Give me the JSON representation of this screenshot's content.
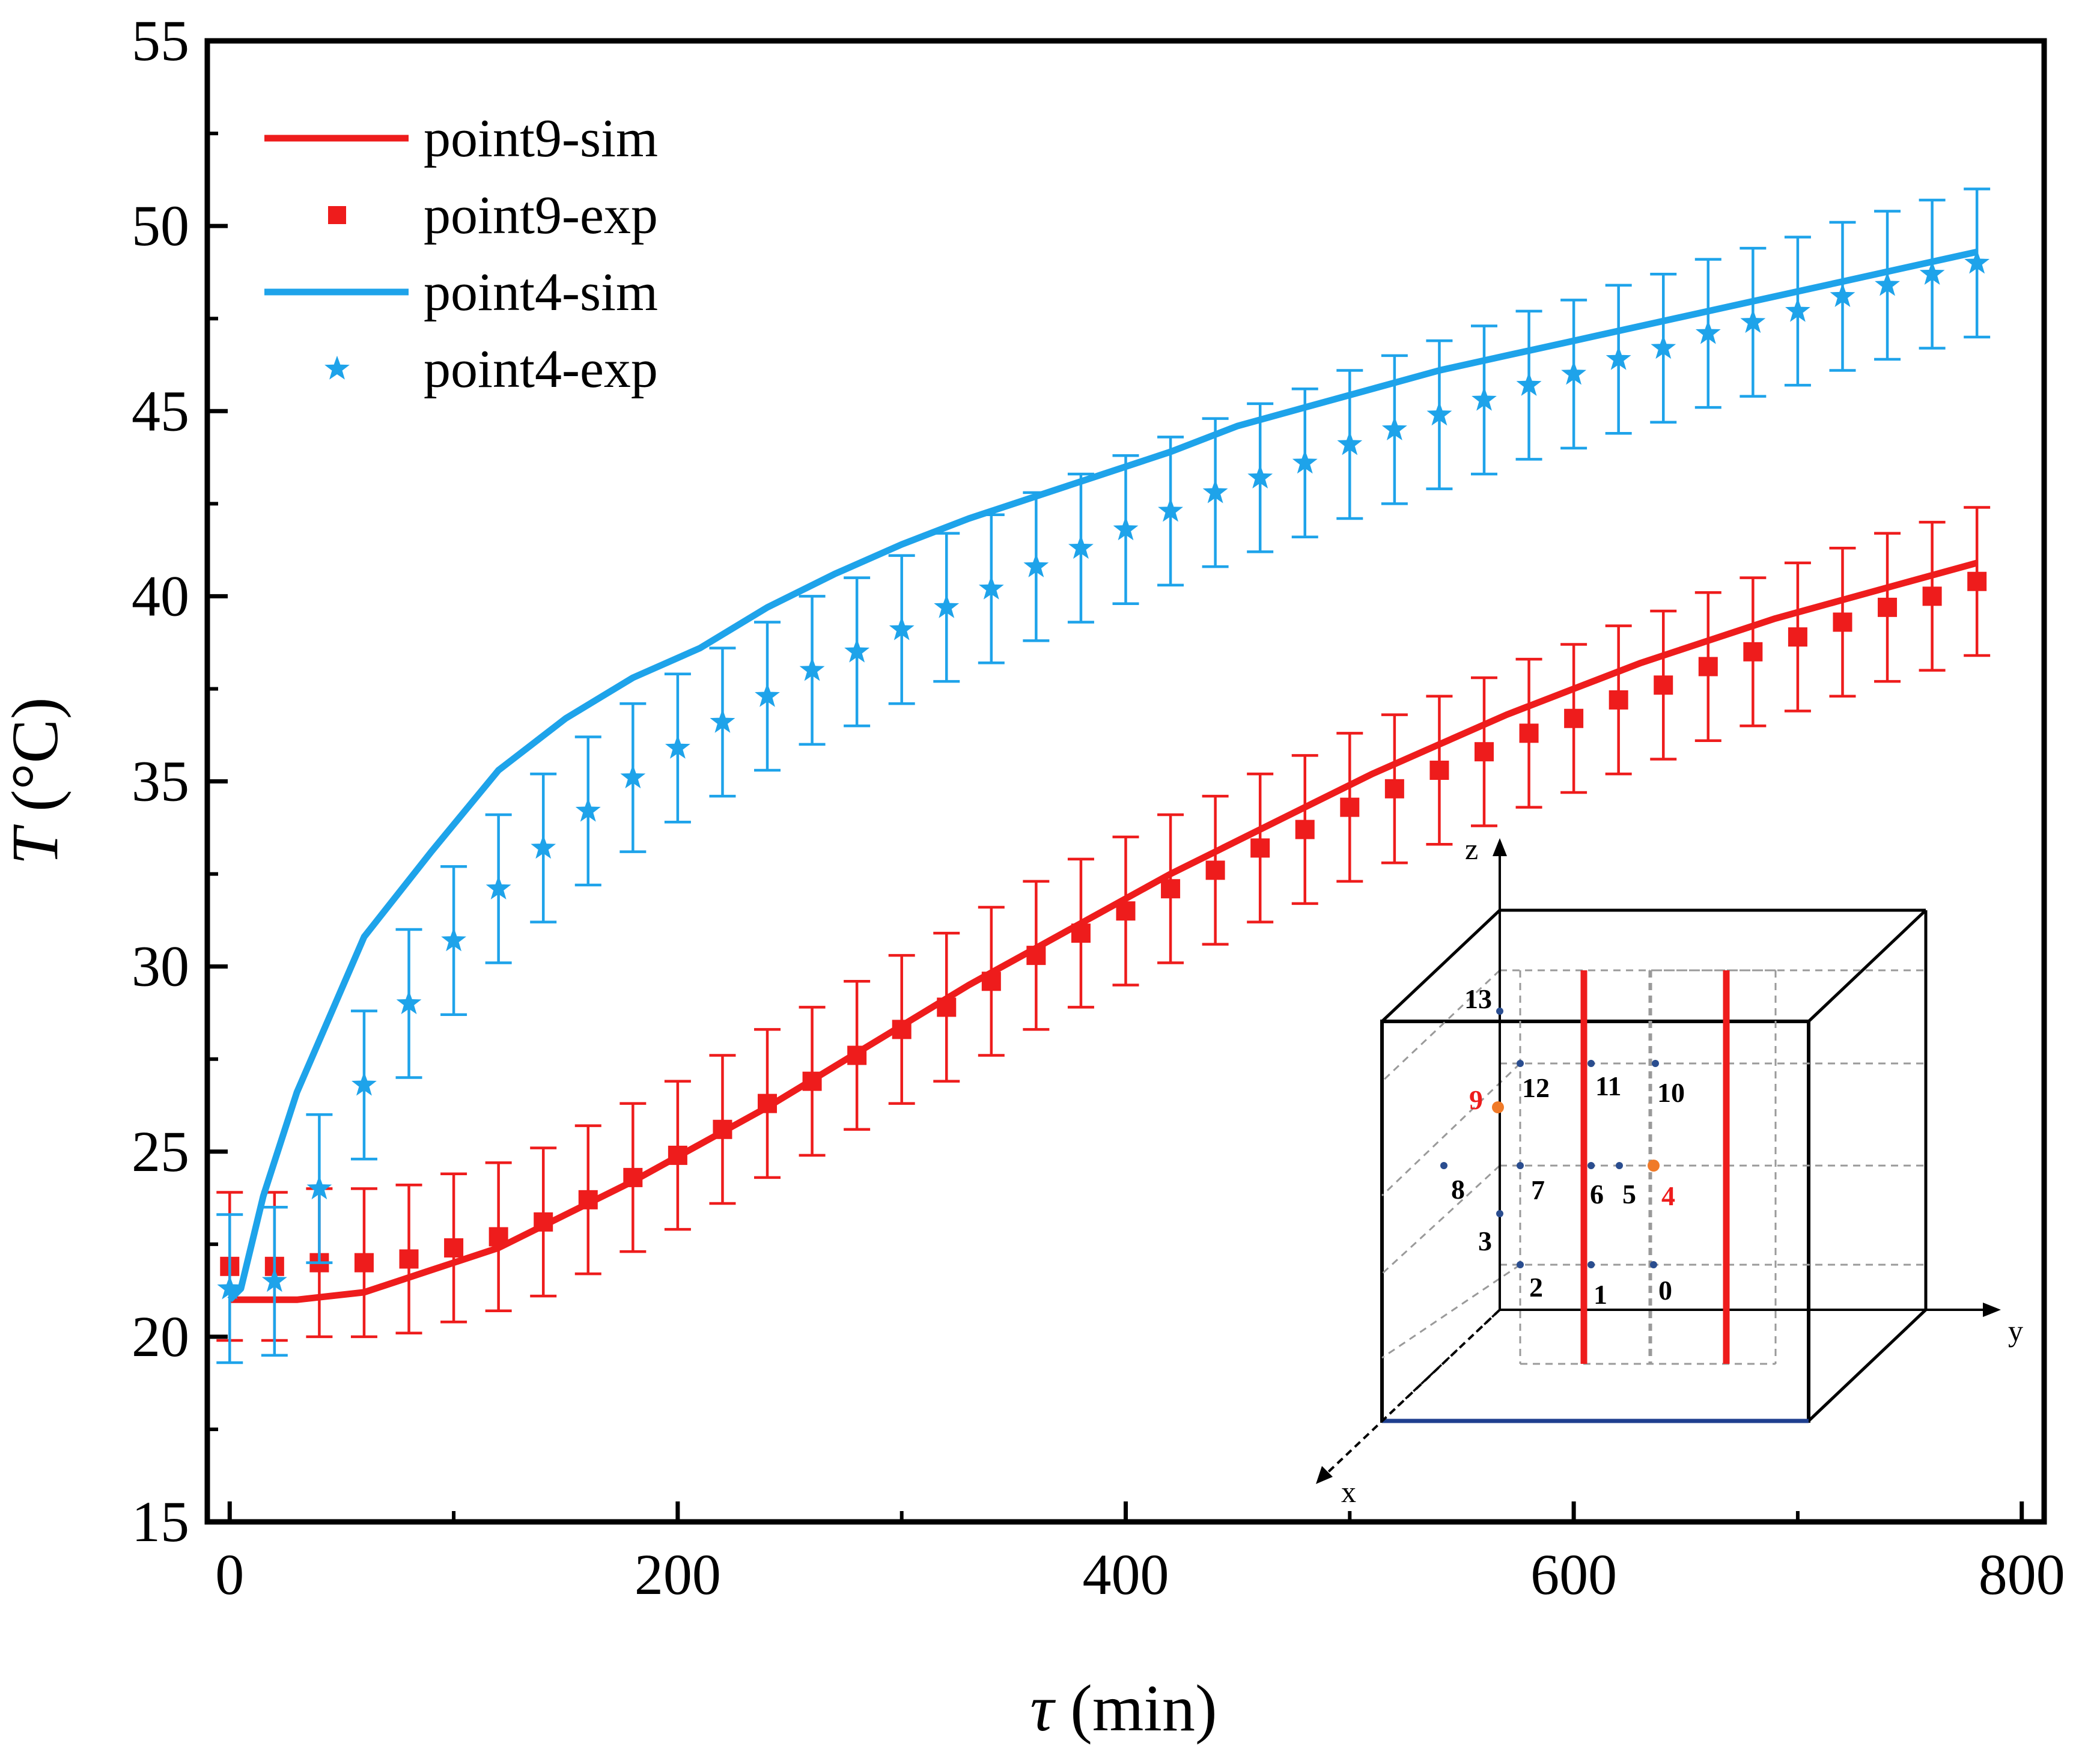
{
  "chart_data": {
    "type": "line",
    "title": "",
    "xlabel": {
      "symbol": "τ",
      "unit": " (min)"
    },
    "ylabel": {
      "symbol": "T",
      "unit": " (°C)"
    },
    "xlim": [
      -10,
      810
    ],
    "ylim": [
      15,
      55
    ],
    "xticks": [
      0,
      200,
      400,
      600,
      800
    ],
    "yticks": [
      15,
      20,
      25,
      30,
      35,
      40,
      45,
      50,
      55
    ],
    "legend_position": "top-left",
    "series": [
      {
        "name": "point9-sim",
        "kind": "line",
        "color": "#ee1c1c",
        "x": [
          0,
          10,
          30,
          60,
          90,
          120,
          150,
          180,
          210,
          240,
          270,
          300,
          330,
          360,
          390,
          420,
          450,
          480,
          510,
          540,
          570,
          600,
          630,
          660,
          690,
          720,
          750,
          780
        ],
        "y": [
          21.0,
          21.0,
          21.0,
          21.2,
          21.8,
          22.4,
          23.3,
          24.2,
          25.2,
          26.2,
          27.3,
          28.4,
          29.5,
          30.5,
          31.5,
          32.5,
          33.4,
          34.3,
          35.2,
          36.0,
          36.8,
          37.5,
          38.2,
          38.8,
          39.4,
          39.9,
          40.4,
          40.9
        ]
      },
      {
        "name": "point9-exp",
        "kind": "scatter",
        "marker": "square",
        "color": "#ee1c1c",
        "error": 2.0,
        "x": [
          0,
          20,
          40,
          60,
          80,
          100,
          120,
          140,
          160,
          180,
          200,
          220,
          240,
          260,
          280,
          300,
          320,
          340,
          360,
          380,
          400,
          420,
          440,
          460,
          480,
          500,
          520,
          540,
          560,
          580,
          600,
          620,
          640,
          660,
          680,
          700,
          720,
          740,
          760,
          780
        ],
        "y": [
          21.9,
          21.9,
          22.0,
          22.0,
          22.1,
          22.4,
          22.7,
          23.1,
          23.7,
          24.3,
          24.9,
          25.6,
          26.3,
          26.9,
          27.6,
          28.3,
          28.9,
          29.6,
          30.3,
          30.9,
          31.5,
          32.1,
          32.6,
          33.2,
          33.7,
          34.3,
          34.8,
          35.3,
          35.8,
          36.3,
          36.7,
          37.2,
          37.6,
          38.1,
          38.5,
          38.9,
          39.3,
          39.7,
          40.0,
          40.4
        ]
      },
      {
        "name": "point4-sim",
        "kind": "line",
        "color": "#1ea3ea",
        "x": [
          0,
          5,
          15,
          30,
          60,
          90,
          120,
          150,
          180,
          210,
          240,
          270,
          300,
          330,
          360,
          390,
          420,
          450,
          480,
          510,
          540,
          570,
          600,
          630,
          660,
          690,
          720,
          750,
          780
        ],
        "y": [
          21.0,
          21.3,
          23.8,
          26.6,
          30.8,
          33.1,
          35.3,
          36.7,
          37.8,
          38.6,
          39.7,
          40.6,
          41.4,
          42.1,
          42.7,
          43.3,
          43.9,
          44.6,
          45.1,
          45.6,
          46.1,
          46.5,
          46.9,
          47.3,
          47.7,
          48.1,
          48.5,
          48.9,
          49.3
        ]
      },
      {
        "name": "point4-exp",
        "kind": "scatter",
        "marker": "star",
        "color": "#1ea3ea",
        "error": 2.0,
        "x": [
          0,
          20,
          40,
          60,
          80,
          100,
          120,
          140,
          160,
          180,
          200,
          220,
          240,
          260,
          280,
          300,
          320,
          340,
          360,
          380,
          400,
          420,
          440,
          460,
          480,
          500,
          520,
          540,
          560,
          580,
          600,
          620,
          640,
          660,
          680,
          700,
          720,
          740,
          760,
          780
        ],
        "y": [
          21.3,
          21.5,
          24.0,
          26.8,
          29.0,
          30.7,
          32.1,
          33.2,
          34.2,
          35.1,
          35.9,
          36.6,
          37.3,
          38.0,
          38.5,
          39.1,
          39.7,
          40.2,
          40.8,
          41.3,
          41.8,
          42.3,
          42.8,
          43.2,
          43.6,
          44.1,
          44.5,
          44.9,
          45.3,
          45.7,
          46.0,
          46.4,
          46.7,
          47.1,
          47.4,
          47.7,
          48.1,
          48.4,
          48.7,
          49.0
        ]
      }
    ],
    "inset": {
      "description": "3D measurement point layout",
      "axis_labels": {
        "z": "z",
        "y": "y",
        "x": "x"
      },
      "points": [
        {
          "label": "13",
          "highlight": false
        },
        {
          "label": "12",
          "highlight": false
        },
        {
          "label": "11",
          "highlight": false
        },
        {
          "label": "10",
          "highlight": false
        },
        {
          "label": "9",
          "highlight": true
        },
        {
          "label": "8",
          "highlight": false
        },
        {
          "label": "7",
          "highlight": false
        },
        {
          "label": "6",
          "highlight": false
        },
        {
          "label": "5",
          "highlight": false
        },
        {
          "label": "4",
          "highlight": true
        },
        {
          "label": "3",
          "highlight": false
        },
        {
          "label": "2",
          "highlight": false
        },
        {
          "label": "1",
          "highlight": false
        },
        {
          "label": "0",
          "highlight": false
        }
      ],
      "heater_color": "#ee1c1c",
      "highlight_label_color": "#ee1c1c",
      "highlight_point_color": "#f07a28",
      "point_color": "#2a4d8f"
    }
  }
}
